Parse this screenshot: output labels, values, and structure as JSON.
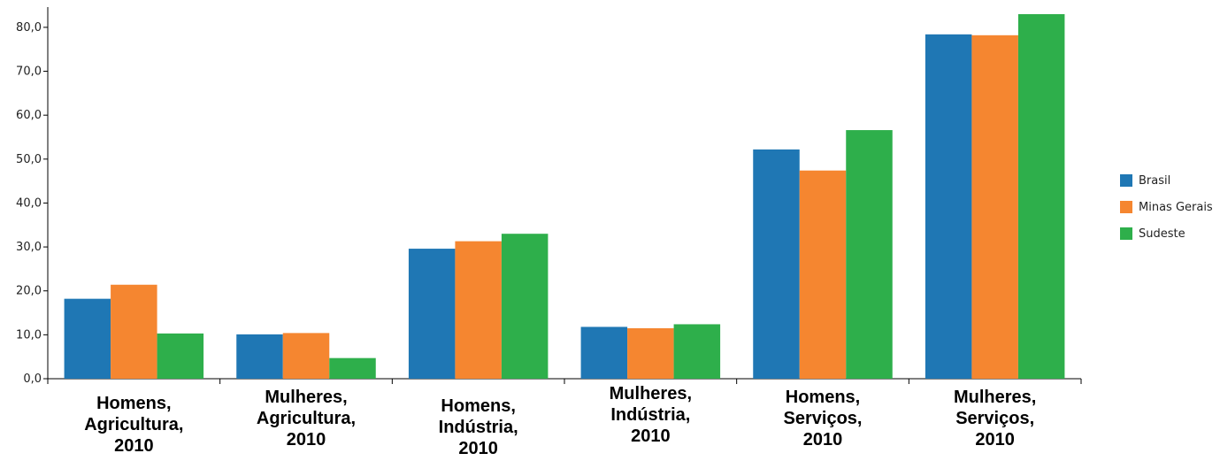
{
  "chart_data": {
    "type": "bar",
    "categories": [
      [
        "Homens,",
        "Agricultura,",
        "2010"
      ],
      [
        "Mulheres,",
        "Agricultura,",
        "2010"
      ],
      [
        "Homens,",
        "Indústria,",
        "2010"
      ],
      [
        "Mulheres,",
        "Indústria,",
        "2010"
      ],
      [
        "Homens,",
        "Serviços,",
        "2010"
      ],
      [
        "Mulheres,",
        "Serviços,",
        "2010"
      ]
    ],
    "series": [
      {
        "name": "Brasil",
        "color": "#1f77b4",
        "values": [
          18.2,
          10.1,
          29.6,
          11.8,
          52.2,
          78.4
        ]
      },
      {
        "name": "Minas Gerais",
        "color": "#f58630",
        "values": [
          21.4,
          10.4,
          31.3,
          11.5,
          47.4,
          78.2
        ]
      },
      {
        "name": "Sudeste",
        "color": "#2eaf4b",
        "values": [
          10.3,
          4.7,
          33.0,
          12.4,
          56.6,
          83.0
        ]
      }
    ],
    "yticks": [
      "0,0",
      "10,0",
      "20,0",
      "30,0",
      "40,0",
      "50,0",
      "60,0",
      "70,0",
      "80,0"
    ],
    "ylim": [
      0,
      83
    ],
    "legend_position": "right",
    "grid": false
  }
}
